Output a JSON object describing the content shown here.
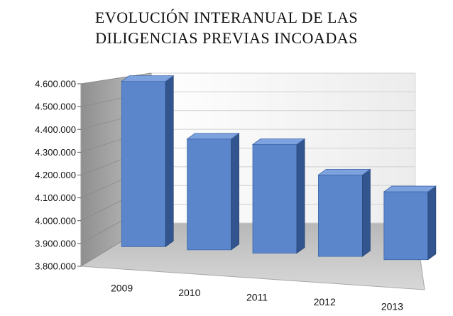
{
  "chart_data": {
    "type": "bar",
    "title": [
      "EVOLUCIÓN INTERANUAL DE LAS",
      "DILIGENCIAS PREVIAS INCOADAS"
    ],
    "categories": [
      "2009",
      "2010",
      "2011",
      "2012",
      "2013"
    ],
    "values": [
      4530000,
      4290000,
      4280000,
      4160000,
      4100000
    ],
    "yticks": [
      "3.800.000",
      "3.900.000",
      "4.000.000",
      "4.100.000",
      "4.200.000",
      "4.300.000",
      "4.400.000",
      "4.500.000",
      "4.600.000"
    ],
    "ylim": [
      3800000,
      4600000
    ],
    "grid": true,
    "legend": "none",
    "style": "3d-column",
    "colors": {
      "bar_front": "#5b86cc",
      "bar_side": "#33558f",
      "bar_top": "#7ea2de",
      "wall": "#f2f2f2",
      "side_wall": "#a6a6a6",
      "floor": "#c4c4c4",
      "grid": "#cfcfcf"
    }
  }
}
